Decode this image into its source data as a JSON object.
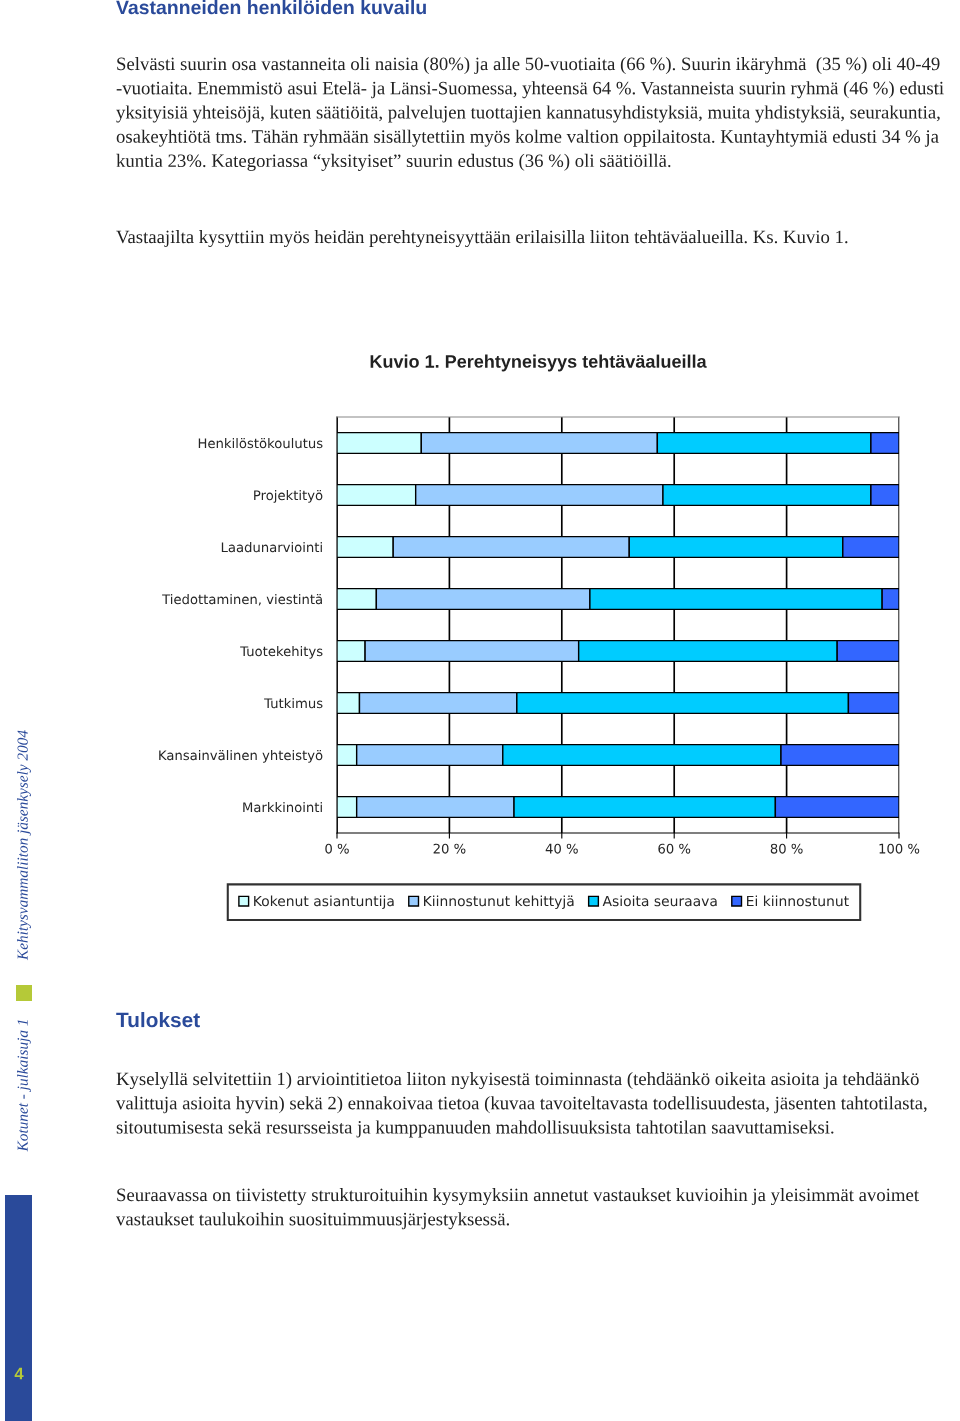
{
  "chart_data": {
    "type": "bar",
    "title": "Kuvio 1. Perehtyneisyys tehtäväalueilla",
    "orientation": "horizontal",
    "stacked": true,
    "categories": [
      "Henkilöstökoulutus",
      "Projektityö",
      "Laadunarviointi",
      "Tiedottaminen, viestintä",
      "Tuotekehitys",
      "Tutkimus",
      "Kansainvälinen yhteistyö",
      "Markkinointi"
    ],
    "series": [
      {
        "name": "Kokenut asiantuntija",
        "color": "#ccffff",
        "values": [
          15,
          14,
          10,
          7,
          5,
          4,
          3.5,
          3.5
        ]
      },
      {
        "name": "Kiinnostunut kehittyjä",
        "color": "#99ccff",
        "values": [
          42,
          44,
          42,
          38,
          38,
          28,
          26,
          28
        ]
      },
      {
        "name": "Asioita seuraava",
        "color": "#00ccff",
        "values": [
          38,
          37,
          38,
          52,
          46,
          59,
          49.5,
          46.5
        ]
      },
      {
        "name": "Ei kiinnostunut",
        "color": "#3366ff",
        "values": [
          5,
          5,
          10,
          3,
          11,
          9,
          21,
          22
        ]
      }
    ],
    "xlim": [
      0,
      100
    ],
    "xticks": [
      {
        "value": 0,
        "label": "0 %"
      },
      {
        "value": 20,
        "label": "20 %"
      },
      {
        "value": 40,
        "label": "40 %"
      },
      {
        "value": 60,
        "label": "60 %"
      },
      {
        "value": 80,
        "label": "80 %"
      },
      {
        "value": 100,
        "label": "100 %"
      }
    ],
    "grid": "x",
    "legend": "bottom",
    "annotations": [
      "Vastanneiden henkilöiden kuvailu",
      "Selvästi suurin osa vastanneita oli naisia (80%) ja alle 50-vuotiaita (66 %). Suurin ikäryhmä  (35 %) oli 40-49 -vuotiaita. Enemmistö asui Etelä- ja Länsi-Suomessa, yhteensä 64 %. Vastanneista suurin ryhmä (46 %) edusti yksityisiä yhteisöjä, kuten säätiöitä, palvelujen tuottajien kannatusyhdistyksiä, muita yhdistyksiä, seurakuntia, osakeyhtiötä tms. Tähän ryhmään sisällytettiin myös kolme valtion oppilaitosta. Kuntayhtymiä edusti 34 % ja kuntia 23%. Kategoriassa “yksityiset” suurin edustus (36 %) oli säätiöillä.",
      "Vastaajilta kysyttiin myös heidän perehtyneisyyttään erilaisilla liiton tehtäväalueilla. Ks. Kuvio 1.",
      "Tulokset",
      "Kyselyllä selvitettiin 1) arviointitietoa liiton nykyisestä toiminnasta (tehdäänkö oikeita asioita ja tehdäänkö valittuja asioita hyvin) sekä 2) ennakoivaa tietoa (kuvaa tavoiteltavasta todellisuudesta, jäsenten tahtotilasta, sitoutumisesta sekä resursseista ja kumppanuuden mahdollisuuksista tahtotilan saavuttamiseksi.",
      "Seuraavassa on tiivistetty strukturoituihin kysymyksiin annetut vastaukset kuvioihin ja yleisimmät avoimet vastaukset taulukoihin suosituimmuusjärjestyksessä.",
      "Kotunet - julkaisuja 1",
      "Kehitysvammaliiton jäsenkysely 2004",
      "4"
    ]
  }
}
